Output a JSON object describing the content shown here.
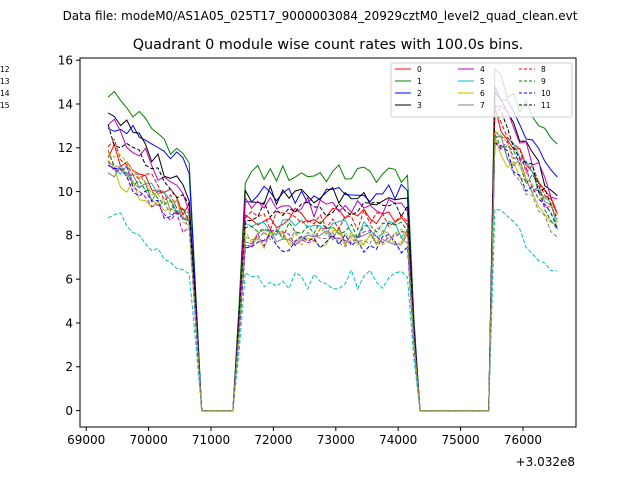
{
  "suptitle": "Data file: modeM0/AS1A05_025T17_9000003084_20929cztM0_level2_quad_clean.evt",
  "chart_data": {
    "type": "line",
    "title": "Quadrant 0 module wise count rates with 100.0s bins.",
    "xlabel": "",
    "ylabel": "",
    "x_offset_label": "+3.032e8",
    "xlim": [
      68900,
      76850
    ],
    "ylim": [
      -0.75,
      16.1
    ],
    "xticks": [
      69000,
      70000,
      71000,
      72000,
      73000,
      74000,
      75000,
      76000
    ],
    "yticks": [
      0,
      2,
      4,
      6,
      8,
      10,
      12,
      14,
      16
    ],
    "x_start": 69350,
    "x_step": 100,
    "segments": [
      {
        "start": 69350,
        "end": 70650,
        "factor": 1.0
      },
      {
        "start": 70750,
        "end": 70750,
        "factor": 0.5
      },
      {
        "start": 70850,
        "end": 71350,
        "factor": 0.0
      },
      {
        "start": 71450,
        "end": 71450,
        "factor": 0.45
      },
      {
        "start": 71550,
        "end": 74150,
        "factor": 1.0
      },
      {
        "start": 74250,
        "end": 74250,
        "factor": 0.4
      },
      {
        "start": 74350,
        "end": 75450,
        "factor": 0.0
      },
      {
        "start": 75550,
        "end": 76550,
        "factor": 1.0
      }
    ],
    "legend_position": "upper-right",
    "series": [
      {
        "name": "0",
        "color": "#ff0000",
        "dash": false,
        "p1": [
          12.0,
          9.0
        ],
        "p2": 8.8,
        "p3": [
          13.6,
          9.3
        ]
      },
      {
        "name": "1",
        "color": "#008000",
        "dash": false,
        "p1": [
          14.6,
          11.4
        ],
        "p2": 10.8,
        "p3": [
          15.2,
          12.2
        ]
      },
      {
        "name": "2",
        "color": "#0000ff",
        "dash": false,
        "p1": [
          13.3,
          11.1
        ],
        "p2": 9.9,
        "p3": [
          14.8,
          10.4
        ]
      },
      {
        "name": "3",
        "color": "#000000",
        "dash": false,
        "p1": [
          13.8,
          9.9
        ],
        "p2": 9.8,
        "p3": [
          14.2,
          9.8
        ]
      },
      {
        "name": "4",
        "color": "#bf00bf",
        "dash": false,
        "p1": [
          13.3,
          9.5
        ],
        "p2": 9.3,
        "p3": [
          14.3,
          9.6
        ]
      },
      {
        "name": "5",
        "color": "#00bfbf",
        "dash": false,
        "p1": [
          11.6,
          8.6
        ],
        "p2": 8.3,
        "p3": [
          13.2,
          8.7
        ]
      },
      {
        "name": "6",
        "color": "#bfbf00",
        "dash": false,
        "p1": [
          11.0,
          8.4
        ],
        "p2": 7.8,
        "p3": [
          12.2,
          8.4
        ]
      },
      {
        "name": "7",
        "color": "#808080",
        "dash": false,
        "p1": [
          11.2,
          8.9
        ],
        "p2": 8.0,
        "p3": [
          12.7,
          8.6
        ]
      },
      {
        "name": "8",
        "color": "#ff0000",
        "dash": true,
        "p1": [
          12.2,
          9.0
        ],
        "p2": 8.7,
        "p3": [
          13.4,
          9.1
        ]
      },
      {
        "name": "9",
        "color": "#008000",
        "dash": true,
        "p1": [
          11.5,
          8.7
        ],
        "p2": 8.2,
        "p3": [
          12.8,
          8.7
        ]
      },
      {
        "name": "10",
        "color": "#0000ff",
        "dash": true,
        "p1": [
          11.0,
          8.4
        ],
        "p2": 7.6,
        "p3": [
          12.4,
          8.2
        ]
      },
      {
        "name": "11",
        "color": "#000000",
        "dash": true,
        "p1": [
          12.8,
          9.3
        ],
        "p2": 9.1,
        "p3": [
          13.7,
          9.0
        ]
      },
      {
        "name": "12",
        "color": "#bf00bf",
        "dash": true,
        "p1": [
          11.4,
          8.3
        ],
        "p2": 7.9,
        "p3": [
          12.6,
          8.8
        ]
      },
      {
        "name": "13",
        "color": "#00bfbf",
        "dash": true,
        "p1": [
          9.0,
          6.5
        ],
        "p2": 6.0,
        "p3": [
          9.3,
          6.1
        ]
      },
      {
        "name": "14",
        "color": "#bfbf00",
        "dash": true,
        "p1": [
          11.8,
          8.8
        ],
        "p2": 8.0,
        "p3": [
          12.7,
          8.9
        ]
      },
      {
        "name": "15",
        "color": "#808080",
        "dash": true,
        "p1": [
          11.8,
          8.5
        ],
        "p2": 7.9,
        "p3": [
          12.7,
          7.7
        ]
      }
    ]
  }
}
